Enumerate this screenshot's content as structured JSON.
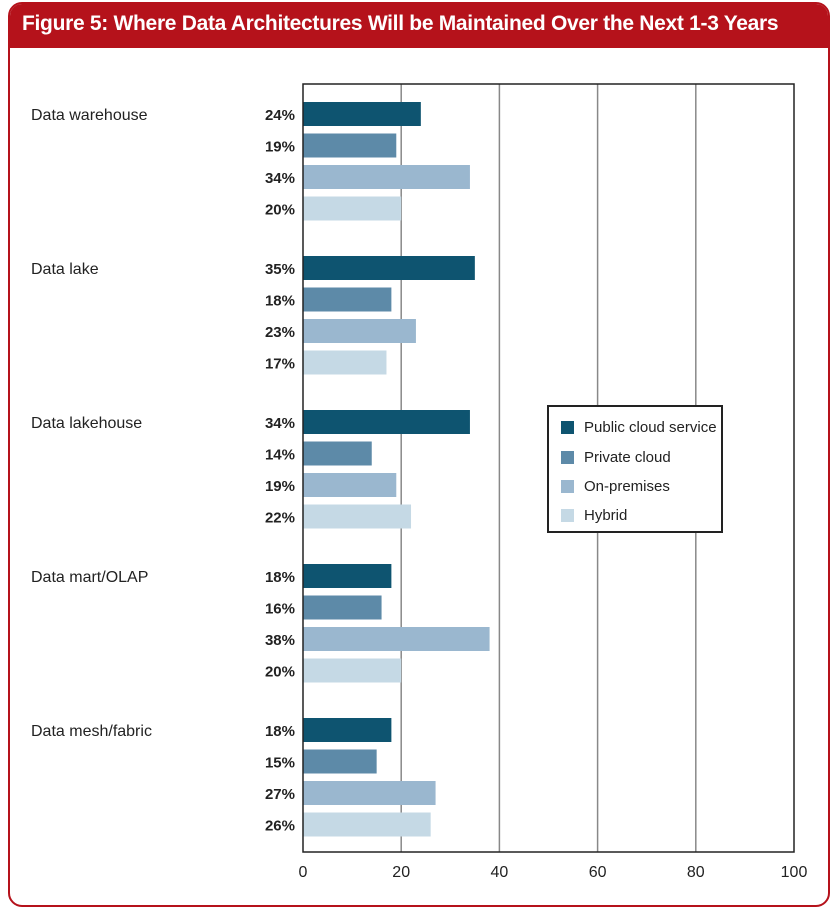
{
  "title": "Figure 5: Where Data Architectures Will be Maintained Over the Next 1-3 Years",
  "colors": {
    "frame": "#b5121b",
    "title_text": "#ffffff",
    "series": [
      "#0e5470",
      "#5d8aa8",
      "#9ab7cf",
      "#c5d9e5"
    ],
    "gridline": "#888888"
  },
  "chart_data": {
    "type": "bar",
    "orientation": "horizontal",
    "categories": [
      "Data warehouse",
      "Data lake",
      "Data lakehouse",
      "Data mart/OLAP",
      "Data mesh/fabric"
    ],
    "series": [
      {
        "name": "Public cloud service",
        "values": [
          24,
          35,
          34,
          18,
          18
        ],
        "labels": [
          "24%",
          "35%",
          "34%",
          "18%",
          "18%"
        ]
      },
      {
        "name": "Private cloud",
        "values": [
          19,
          18,
          14,
          16,
          15
        ],
        "labels": [
          "19%",
          "18%",
          "14%",
          "16%",
          "15%"
        ]
      },
      {
        "name": "On-premises",
        "values": [
          34,
          23,
          19,
          38,
          27
        ],
        "labels": [
          "34%",
          "23%",
          "19%",
          "38%",
          "27%"
        ]
      },
      {
        "name": "Hybrid",
        "values": [
          20,
          17,
          22,
          20,
          26
        ],
        "labels": [
          "20%",
          "17%",
          "22%",
          "20%",
          "26%"
        ]
      }
    ],
    "xlim": [
      0,
      100
    ],
    "xticks": [
      "0",
      "20",
      "40",
      "60",
      "80",
      "100"
    ],
    "xlabel": "",
    "ylabel": "",
    "grid": true,
    "legend_position": "right-middle"
  }
}
